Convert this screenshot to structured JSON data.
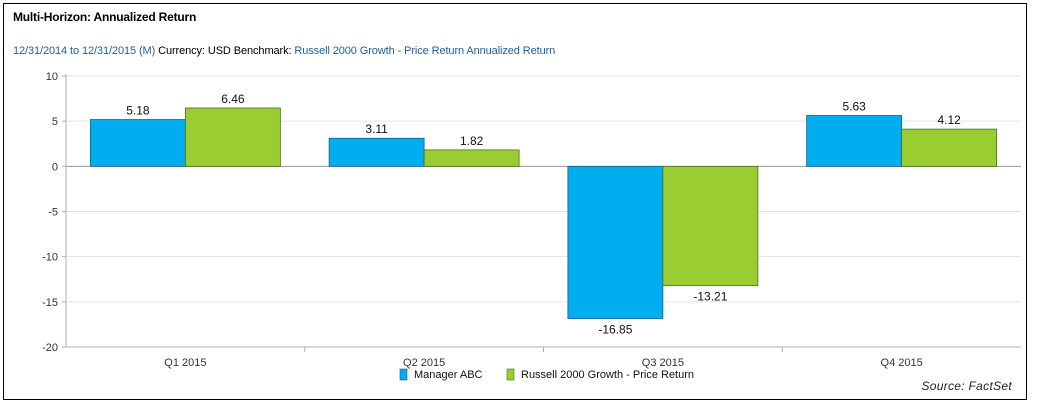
{
  "chart_data": {
    "type": "bar",
    "title": "Multi-Horizon: Annualized Return",
    "subtitle": {
      "period": "12/31/2014 to 12/31/2015 (M)",
      "currency": "Currency: USD",
      "benchmark_label": "Benchmark:",
      "benchmark": "Russell 2000 Growth - Price Return Annualized Return"
    },
    "categories": [
      "Q1 2015",
      "Q2 2015",
      "Q3 2015",
      "Q4 2015"
    ],
    "series": [
      {
        "name": "Manager ABC",
        "values": [
          5.18,
          3.11,
          -16.85,
          5.63
        ],
        "color": "#00aeef"
      },
      {
        "name": "Russell 2000 Growth - Price Return",
        "values": [
          6.46,
          1.82,
          -13.21,
          4.12
        ],
        "color": "#9acd32"
      }
    ],
    "value_labels": [
      [
        "5.18",
        "3.11",
        "-16.85",
        "5.63"
      ],
      [
        "6.46",
        "1.82",
        "-13.21",
        "4.12"
      ]
    ],
    "yticks": [
      "10",
      "5",
      "0",
      "-5",
      "-10",
      "-15",
      "-20"
    ],
    "ylim": [
      -20,
      10
    ],
    "xlabel": "",
    "ylabel": "",
    "grid": true,
    "legend": "bottom-center",
    "source": "Source: FactSet"
  }
}
